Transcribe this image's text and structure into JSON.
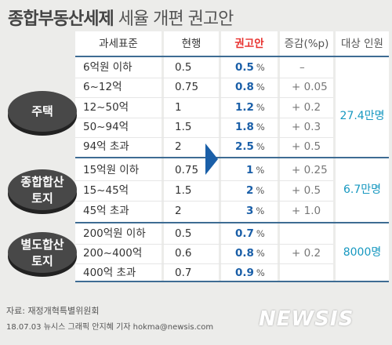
{
  "title": {
    "bold": "종합부동산세제",
    "light": "세율 개편 권고안"
  },
  "headers": {
    "tax_base": "과세표준",
    "current": "현행",
    "recommended": "권고안",
    "change": "증감(%p)",
    "target": "대상 인원"
  },
  "groups": [
    {
      "line1": "주택",
      "line2": "",
      "target": "27.4만명"
    },
    {
      "line1": "종합합산",
      "line2": "토지",
      "target": "6.7만명"
    },
    {
      "line1": "별도합산",
      "line2": "토지",
      "target": "8000명"
    }
  ],
  "rows": [
    {
      "base": "6억원 이하",
      "current": "0.5",
      "rec": "0.5",
      "change": "–"
    },
    {
      "base": "6~12억",
      "current": "0.75",
      "rec": "0.8",
      "change": "+ 0.05"
    },
    {
      "base": "12~50억",
      "current": "1",
      "rec": "1.2",
      "change": "+ 0.2"
    },
    {
      "base": "50~94억",
      "current": "1.5",
      "rec": "1.8",
      "change": "+ 0.3"
    },
    {
      "base": "94억 초과",
      "current": "2",
      "rec": "2.5",
      "change": "+ 0.5"
    },
    {
      "base": "15억원 이하",
      "current": "0.75",
      "rec": "1",
      "change": "+ 0.25"
    },
    {
      "base": "15~45억",
      "current": "1.5",
      "rec": "2",
      "change": "+ 0.5"
    },
    {
      "base": "45억 초과",
      "current": "2",
      "rec": "3",
      "change": "+ 1.0"
    },
    {
      "base": "200억원 이하",
      "current": "0.5",
      "rec": "0.7",
      "change": ""
    },
    {
      "base": "200~400억",
      "current": "0.6",
      "rec": "0.8",
      "change": "+ 0.2"
    },
    {
      "base": "400억 초과",
      "current": "0.7",
      "rec": "0.9",
      "change": ""
    }
  ],
  "percent_sign": "%",
  "source": "자료: 재정개혁특별위원회",
  "credit": "18.07.03 뉴시스 그래픽 안지혜 기자 hokma@newsis.com",
  "logo": "NEWSIS",
  "colors": {
    "recommended": "#1a5fa8",
    "recommended_header": "#e8322f",
    "target": "#1798c0",
    "separator": "#3e6c93",
    "group_badge": "#444444"
  }
}
